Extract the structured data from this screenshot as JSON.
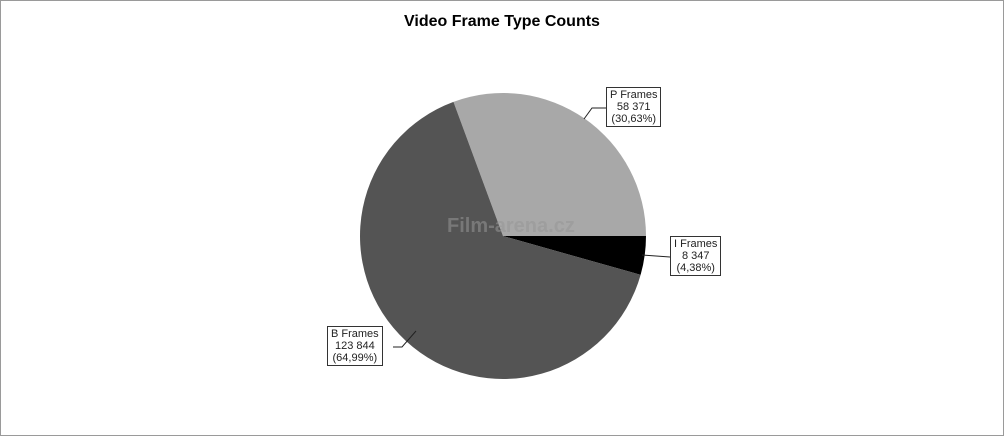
{
  "chart_data": {
    "type": "pie",
    "title": "Video Frame Type Counts",
    "slices": [
      {
        "name": "P Frames",
        "value": 58371,
        "value_label": "58 371",
        "percent_label": "(30,63%)",
        "color": "#a8a8a8"
      },
      {
        "name": "I Frames",
        "value": 8347,
        "value_label": "8 347",
        "percent_label": "(4,38%)",
        "color": "#000000"
      },
      {
        "name": "B Frames",
        "value": 123844,
        "value_label": "123 844",
        "percent_label": "(64,99%)",
        "color": "#545454"
      }
    ],
    "watermark": "Film-arena.cz"
  }
}
